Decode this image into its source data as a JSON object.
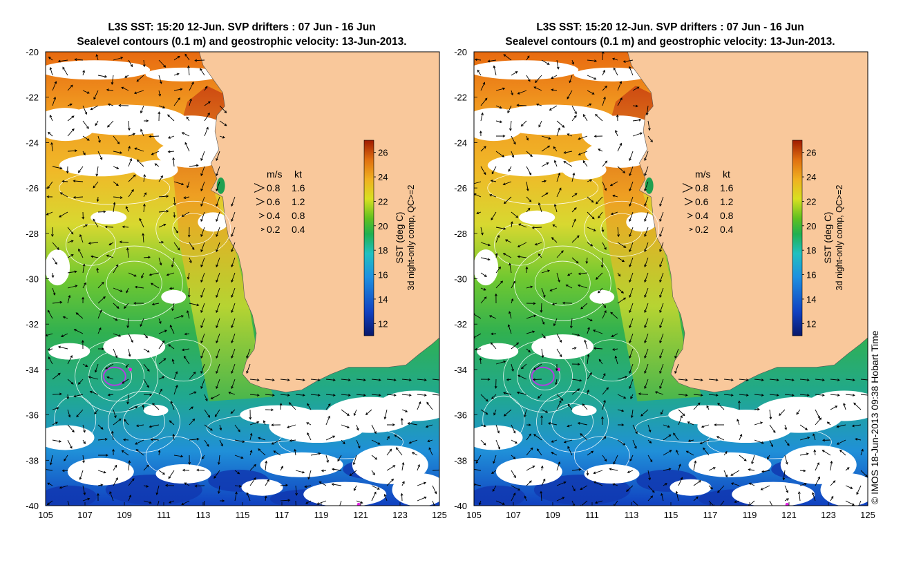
{
  "panels": [
    {
      "title_line1": "L3S SST: 15:20 12-Jun. SVP drifters : 07 Jun - 16 Jun",
      "title_line2": "Sealevel contours (0.1 m) and geostrophic velocity: 13-Jun-2013.",
      "colorbar_label1": "SST (deg C)",
      "colorbar_label2": "3d night-only comp, QC>=2"
    },
    {
      "title_line1": "L3S SST: 15:20 12-Jun. SVP drifters : 07 Jun - 16 Jun",
      "title_line2": "Sealevel contours (0.1 m) and geostrophic velocity: 13-Jun-2013.",
      "colorbar_label1": "SST (deg C)",
      "colorbar_label2": "3d night-only comp, QC>=2"
    }
  ],
  "axes": {
    "lon_ticks": [
      "105",
      "107",
      "109",
      "111",
      "113",
      "115",
      "117",
      "119",
      "121",
      "123",
      "125"
    ],
    "lat_ticks": [
      "-20",
      "-22",
      "-24",
      "-26",
      "-28",
      "-30",
      "-32",
      "-34",
      "-36",
      "-38",
      "-40"
    ],
    "lon_range": [
      105,
      125
    ],
    "lat_range": [
      -40,
      -20
    ]
  },
  "colorbar": {
    "ticks": [
      "12",
      "14",
      "16",
      "18",
      "20",
      "22",
      "24",
      "26"
    ],
    "range": [
      11,
      27
    ],
    "colors": [
      "#08186a",
      "#1040c0",
      "#1e90e0",
      "#20c0c0",
      "#20b050",
      "#60c020",
      "#d8e020",
      "#f0b020",
      "#e07010",
      "#a01a00"
    ]
  },
  "velocity_key": {
    "header_ms": "m/s",
    "header_kt": "kt",
    "rows": [
      {
        "ms": "0.8",
        "kt": "1.6"
      },
      {
        "ms": "0.6",
        "kt": "1.2"
      },
      {
        "ms": "0.4",
        "kt": "0.8"
      },
      {
        "ms": "0.2",
        "kt": "0.4"
      }
    ]
  },
  "land_color": "#f9c89b",
  "credit": "© IMOS 18-Jun-2013 09:38 Hobart Time"
}
